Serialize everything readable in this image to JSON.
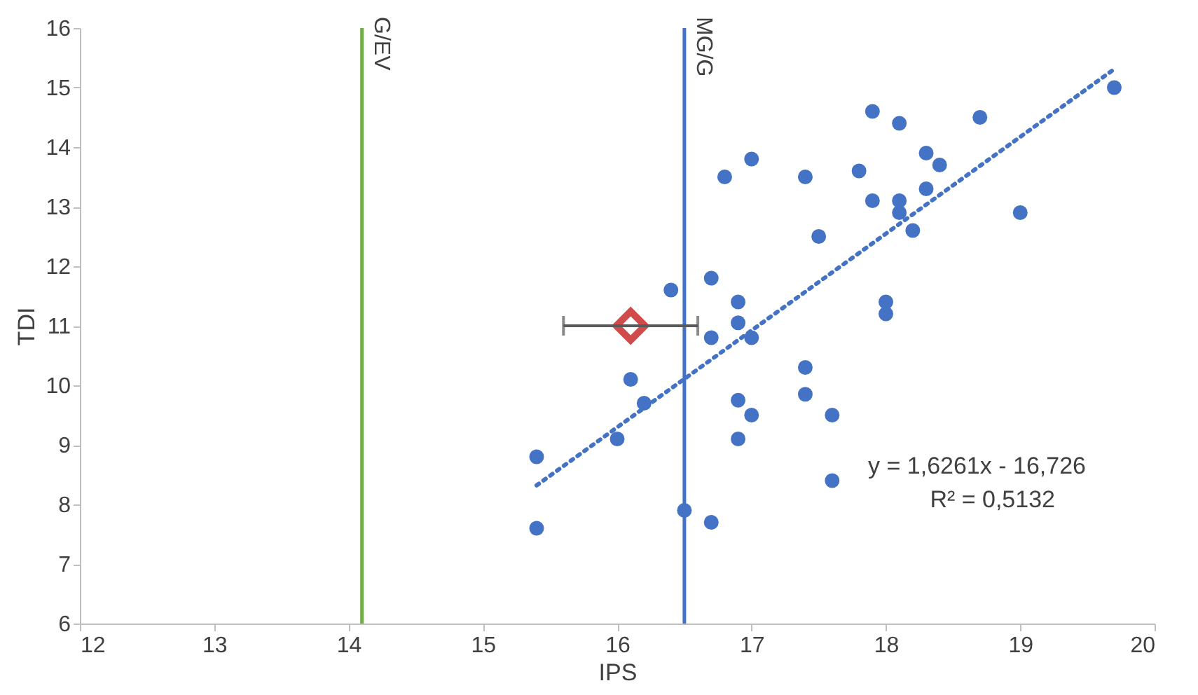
{
  "chart_data": {
    "type": "scatter",
    "xlabel": "IPS",
    "ylabel": "TDI",
    "xlim": [
      12,
      20
    ],
    "xticks": [
      12,
      13,
      14,
      15,
      16,
      17,
      18,
      19,
      20
    ],
    "ylim": [
      6,
      16
    ],
    "yticks": [
      6,
      7,
      8,
      9,
      10,
      11,
      12,
      13,
      14,
      15,
      16
    ],
    "grid": false,
    "series": [
      {
        "marker": "circle",
        "color": "#4472c4",
        "x": [
          15.4,
          15.4,
          16.0,
          16.1,
          16.2,
          16.4,
          16.5,
          16.7,
          16.7,
          16.7,
          16.8,
          16.9,
          16.9,
          16.9,
          16.9,
          17.0,
          17.0,
          17.0,
          17.4,
          17.4,
          17.4,
          17.5,
          17.6,
          17.6,
          17.8,
          17.9,
          17.9,
          18.0,
          18.0,
          18.1,
          18.1,
          18.1,
          18.2,
          18.3,
          18.3,
          18.4,
          18.7,
          19.0,
          19.7
        ],
        "values": [
          8.8,
          7.6,
          9.1,
          10.1,
          9.7,
          11.6,
          7.9,
          11.8,
          10.8,
          7.7,
          13.5,
          11.4,
          11.05,
          9.75,
          9.1,
          13.8,
          10.8,
          9.5,
          13.5,
          10.3,
          9.85,
          12.5,
          9.5,
          8.4,
          13.6,
          14.6,
          13.1,
          11.4,
          11.2,
          14.4,
          13.1,
          12.9,
          12.6,
          13.9,
          13.3,
          13.7,
          14.5,
          12.9,
          15.0
        ]
      },
      {
        "marker": "diamond",
        "color": "#c00000",
        "x": [
          16.1
        ],
        "values": [
          11.0
        ],
        "xerrors": [
          [
            15.6,
            16.6
          ]
        ]
      },
      {
        "type": "line",
        "marker": "none",
        "line_style": "dotted",
        "color": "#4472c4",
        "x": [
          15.4,
          19.7
        ],
        "values": [
          8.32,
          15.31
        ]
      }
    ],
    "ref_lines": [
      {
        "axis": "x",
        "value": 14.1,
        "label": "G/EV",
        "color": "#70ad47"
      },
      {
        "axis": "x",
        "value": 16.5,
        "label": "MG/G",
        "color": "#4472c4"
      }
    ],
    "annotations": [
      "y = 1,6261x - 16,726",
      "R² = 0,5132"
    ]
  }
}
